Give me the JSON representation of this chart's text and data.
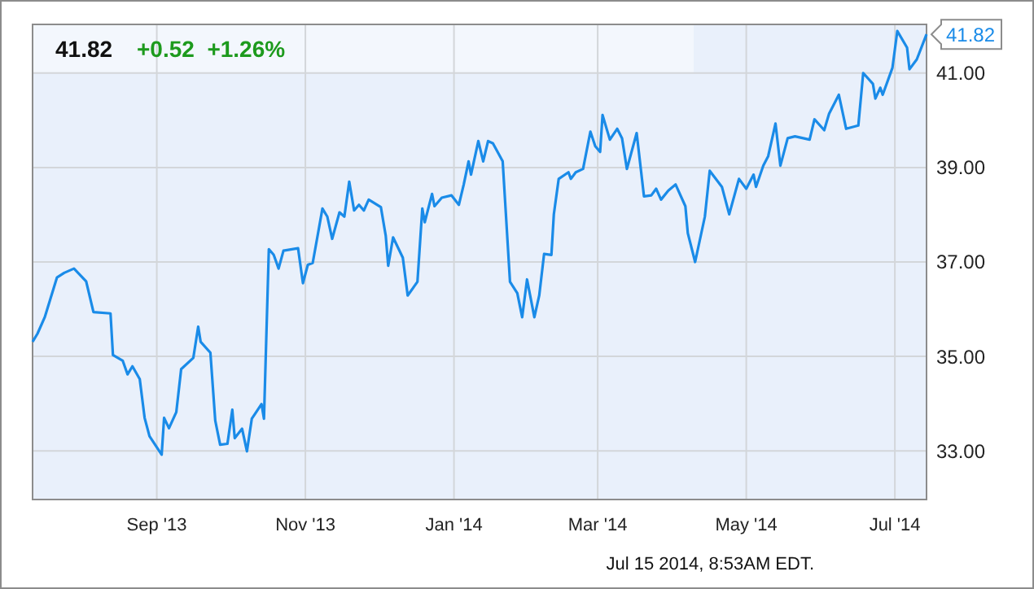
{
  "chart_data": {
    "type": "line",
    "title": "41.82",
    "subtitle": "+0.52  +1.26%",
    "annotations": [
      {
        "text": "41.82",
        "x": "2014-07-14",
        "y": 41.82
      },
      "Jul 15 2014, 8:53AM EDT."
    ],
    "xlim": [
      "2013-07-12",
      "2014-07-14"
    ],
    "xticks": [
      {
        "value": "2013-09-01",
        "label": "Sep '13"
      },
      {
        "value": "2013-11-01",
        "label": "Nov '13"
      },
      {
        "value": "2014-01-01",
        "label": "Jan '14"
      },
      {
        "value": "2014-03-01",
        "label": "Mar '14"
      },
      {
        "value": "2014-05-01",
        "label": "May '14"
      },
      {
        "value": "2014-07-01",
        "label": "Jul '14"
      }
    ],
    "ylim": [
      31.97,
      42.03
    ],
    "yticks": [
      {
        "value": 33,
        "label": "33.00"
      },
      {
        "value": 35,
        "label": "35.00"
      },
      {
        "value": 37,
        "label": "37.00"
      },
      {
        "value": 39,
        "label": "39.00"
      },
      {
        "value": 41,
        "label": "41.00"
      }
    ],
    "grid": true,
    "marker": "none",
    "line_style": "solid",
    "x": [
      "2013-07-12",
      "2013-07-14",
      "2013-07-17",
      "2013-07-22",
      "2013-07-25",
      "2013-07-29",
      "2013-08-03",
      "2013-08-06",
      "2013-08-13",
      "2013-08-14",
      "2013-08-18",
      "2013-08-20",
      "2013-08-22",
      "2013-08-25",
      "2013-08-27",
      "2013-08-29",
      "2013-09-03",
      "2013-09-04",
      "2013-09-06",
      "2013-09-09",
      "2013-09-11",
      "2013-09-16",
      "2013-09-18",
      "2013-09-19",
      "2013-09-23",
      "2013-09-25",
      "2013-09-27",
      "2013-09-30",
      "2013-10-02",
      "2013-10-03",
      "2013-10-06",
      "2013-10-08",
      "2013-10-10",
      "2013-10-14",
      "2013-10-15",
      "2013-10-17",
      "2013-10-19",
      "2013-10-21",
      "2013-10-23",
      "2013-10-29",
      "2013-10-31",
      "2013-11-02",
      "2013-11-04",
      "2013-11-06",
      "2013-11-08",
      "2013-11-10",
      "2013-11-12",
      "2013-11-15",
      "2013-11-17",
      "2013-11-19",
      "2013-11-21",
      "2013-11-23",
      "2013-11-25",
      "2013-11-27",
      "2013-12-02",
      "2013-12-04",
      "2013-12-05",
      "2013-12-07",
      "2013-12-11",
      "2013-12-13",
      "2013-12-17",
      "2013-12-19",
      "2013-12-20",
      "2013-12-23",
      "2013-12-24",
      "2013-12-27",
      "2013-12-31",
      "2014-01-03",
      "2014-01-05",
      "2014-01-07",
      "2014-01-08",
      "2014-01-11",
      "2014-01-13",
      "2014-01-15",
      "2014-01-17",
      "2014-01-21",
      "2014-01-24",
      "2014-01-27",
      "2014-01-29",
      "2014-01-31",
      "2014-02-03",
      "2014-02-05",
      "2014-02-07",
      "2014-02-10",
      "2014-02-11",
      "2014-02-13",
      "2014-02-17",
      "2014-02-18",
      "2014-02-20",
      "2014-02-23",
      "2014-02-26",
      "2014-02-28",
      "2014-03-02",
      "2014-03-03",
      "2014-03-06",
      "2014-03-09",
      "2014-03-11",
      "2014-03-13",
      "2014-03-17",
      "2014-03-20",
      "2014-03-23",
      "2014-03-25",
      "2014-03-27",
      "2014-03-30",
      "2014-04-02",
      "2014-04-06",
      "2014-04-07",
      "2014-04-10",
      "2014-04-14",
      "2014-04-16",
      "2014-04-21",
      "2014-04-24",
      "2014-04-28",
      "2014-05-01",
      "2014-05-04",
      "2014-05-05",
      "2014-05-08",
      "2014-05-10",
      "2014-05-13",
      "2014-05-15",
      "2014-05-18",
      "2014-05-21",
      "2014-05-27",
      "2014-05-29",
      "2014-06-02",
      "2014-06-04",
      "2014-06-08",
      "2014-06-11",
      "2014-06-16",
      "2014-06-18",
      "2014-06-22",
      "2014-06-23",
      "2014-06-25",
      "2014-06-26",
      "2014-06-30",
      "2014-07-02",
      "2014-07-06",
      "2014-07-07",
      "2014-07-10",
      "2014-07-14"
    ],
    "series": [
      {
        "color": "#1a8be8",
        "values": [
          35.31,
          35.48,
          35.83,
          36.67,
          36.77,
          36.86,
          36.59,
          35.94,
          35.91,
          35.03,
          34.91,
          34.62,
          34.79,
          34.52,
          33.7,
          33.31,
          32.92,
          33.7,
          33.48,
          33.82,
          34.73,
          34.97,
          35.63,
          35.31,
          35.08,
          33.64,
          33.13,
          33.15,
          33.87,
          33.27,
          33.47,
          32.99,
          33.68,
          33.99,
          33.68,
          37.27,
          37.15,
          36.86,
          37.24,
          37.29,
          36.55,
          36.94,
          36.98,
          37.55,
          38.13,
          37.96,
          37.49,
          38.05,
          37.96,
          38.7,
          38.09,
          38.21,
          38.09,
          38.32,
          38.16,
          37.55,
          36.92,
          37.52,
          37.09,
          36.29,
          36.58,
          38.13,
          37.84,
          38.44,
          38.18,
          38.36,
          38.41,
          38.21,
          38.64,
          39.13,
          38.85,
          39.56,
          39.13,
          39.56,
          39.51,
          39.13,
          36.58,
          36.34,
          35.83,
          36.63,
          35.83,
          36.29,
          37.17,
          37.15,
          38.01,
          38.76,
          38.9,
          38.76,
          38.9,
          38.97,
          39.76,
          39.45,
          39.33,
          40.11,
          39.59,
          39.82,
          39.62,
          38.97,
          39.73,
          38.39,
          38.41,
          38.55,
          38.32,
          38.51,
          38.64,
          38.18,
          37.61,
          37.0,
          37.96,
          38.93,
          38.59,
          38.01,
          38.76,
          38.55,
          38.85,
          38.59,
          39.04,
          39.24,
          39.93,
          39.04,
          39.62,
          39.66,
          39.59,
          40.02,
          39.79,
          40.14,
          40.54,
          39.82,
          39.89,
          41.0,
          40.77,
          40.46,
          40.69,
          40.54,
          41.11,
          41.89,
          41.54,
          41.08,
          41.29,
          41.82
        ]
      }
    ]
  }
}
